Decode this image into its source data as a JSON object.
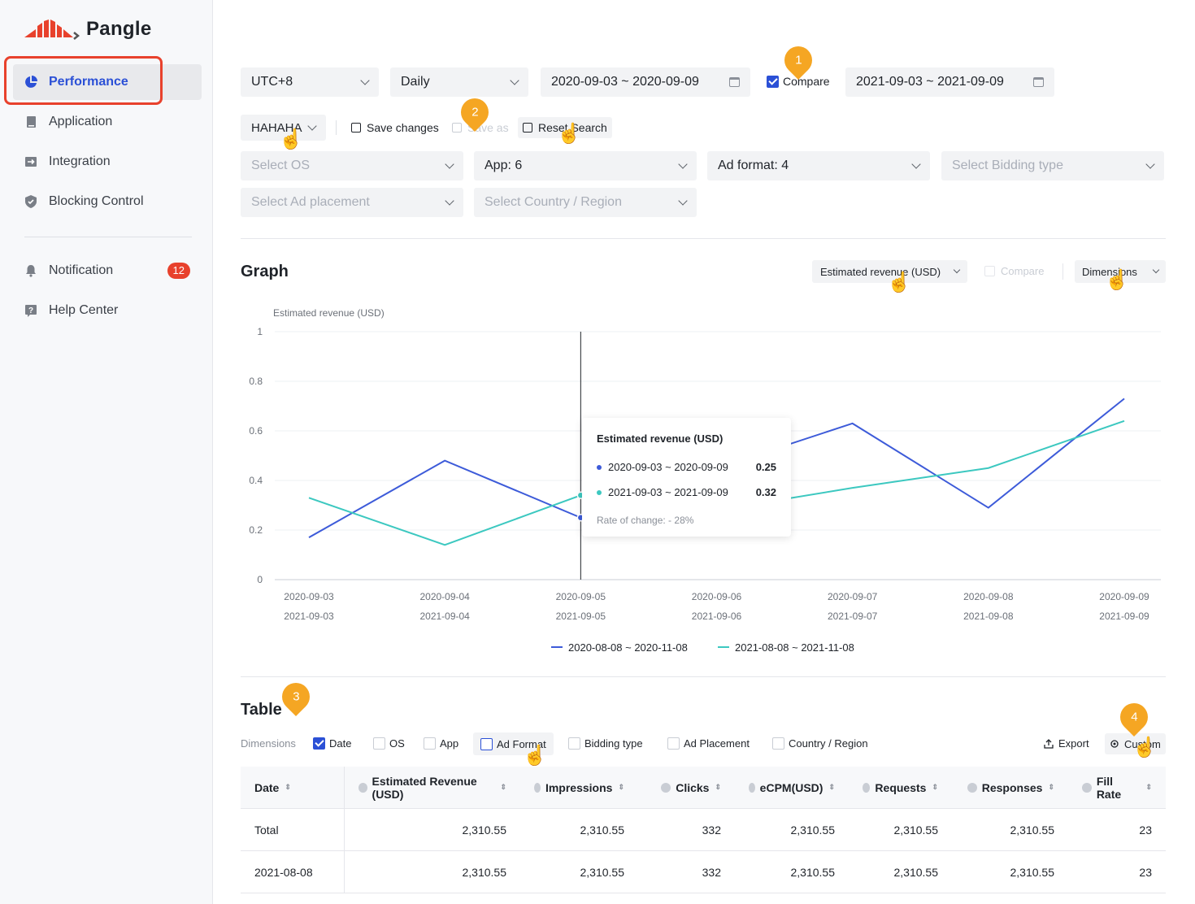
{
  "brand": {
    "name": "Pangle",
    "accent": "#e8412c",
    "primary": "#2b50d6"
  },
  "sidebar": {
    "items": [
      {
        "label": "Performance",
        "icon": "pie-chart-icon",
        "active": true
      },
      {
        "label": "Application",
        "icon": "app-icon"
      },
      {
        "label": "Integration",
        "icon": "integration-icon"
      },
      {
        "label": "Blocking Control",
        "icon": "shield-icon"
      }
    ],
    "secondary": [
      {
        "label": "Notification",
        "icon": "bell-icon",
        "badge": "12"
      },
      {
        "label": "Help Center",
        "icon": "help-icon"
      }
    ]
  },
  "filters": {
    "timezone": "UTC+8",
    "granularity": "Daily",
    "date_range": "2020-09-03 ~ 2020-09-09",
    "compare_label": "Compare",
    "compare_checked": true,
    "compare_range": "2021-09-03 ~ 2021-09-09",
    "preset": "HAHAHA",
    "save_changes": "Save changes",
    "save_as": "Save as",
    "reset": "Reset Search",
    "os": "Select OS",
    "app": "App: 6",
    "ad_format": "Ad format: 4",
    "bidding": "Select Bidding type",
    "placement": "Select Ad placement",
    "country": "Select Country / Region"
  },
  "pins": [
    "1",
    "2",
    "3",
    "4"
  ],
  "graph": {
    "title": "Graph",
    "metric": "Estimated revenue (USD)",
    "compare": "Compare",
    "dimensions": "Dimensions",
    "tooltip": {
      "title": "Estimated revenue (USD)",
      "row1_label": "2020-09-03 ~ 2020-09-09",
      "row1_value": "0.25",
      "row2_label": "2021-09-03 ~ 2021-09-09",
      "row2_value": "0.32",
      "change": "Rate of change: - 28%"
    }
  },
  "chart_data": {
    "type": "line",
    "ylabel": "Estimated revenue (USD)",
    "ylim": [
      0,
      1
    ],
    "yticks": [
      "0",
      "0.2",
      "0.4",
      "0.6",
      "0.8",
      "1"
    ],
    "categories": [
      "2020-09-03",
      "2020-09-04",
      "2020-09-05",
      "2020-09-06",
      "2020-09-07",
      "2020-09-08",
      "2020-09-09"
    ],
    "categories2": [
      "2021-09-03",
      "2021-09-04",
      "2021-09-05",
      "2021-09-06",
      "2021-09-07",
      "2021-09-08",
      "2021-09-09"
    ],
    "series": [
      {
        "name": "2020-08-08 ~ 2020-11-08",
        "color": "#3d5bd9",
        "values": [
          0.17,
          0.48,
          0.25,
          0.45,
          0.63,
          0.29,
          0.73
        ]
      },
      {
        "name": "2021-08-08 ~ 2021-11-08",
        "color": "#3cc8c0",
        "values": [
          0.33,
          0.14,
          0.34,
          0.28,
          0.37,
          0.45,
          0.64
        ]
      }
    ],
    "grid": true,
    "legend": "bottom"
  },
  "table": {
    "title": "Table",
    "dimensions_label": "Dimensions",
    "dimensions": [
      {
        "label": "Date",
        "checked": true
      },
      {
        "label": "OS",
        "checked": false
      },
      {
        "label": "App",
        "checked": false
      },
      {
        "label": "Ad Format",
        "checked": false
      },
      {
        "label": "Bidding type",
        "checked": false
      },
      {
        "label": "Ad Placement",
        "checked": false
      },
      {
        "label": "Country / Region",
        "checked": false
      }
    ],
    "export": "Export",
    "custom": "Custom",
    "columns": [
      "Date",
      "Estimated Revenue (USD)",
      "Impressions",
      "Clicks",
      "eCPM(USD)",
      "Requests",
      "Responses",
      "Fill Rate"
    ],
    "rows": [
      [
        "Total",
        "2,310.55",
        "2,310.55",
        "332",
        "2,310.55",
        "2,310.55",
        "2,310.55",
        "23"
      ],
      [
        "2021-08-08",
        "2,310.55",
        "2,310.55",
        "332",
        "2,310.55",
        "2,310.55",
        "2,310.55",
        "23"
      ]
    ]
  }
}
